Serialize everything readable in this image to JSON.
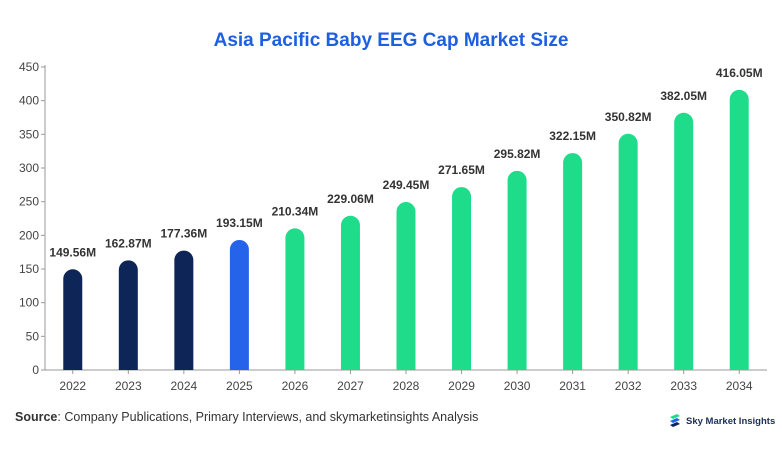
{
  "chart_data": {
    "type": "bar",
    "title": "Asia Pacific Baby EEG Cap Market Size",
    "xlabel": "",
    "ylabel": "",
    "ylim": [
      0,
      450
    ],
    "yticks": [
      0,
      50,
      100,
      150,
      200,
      250,
      300,
      350,
      400,
      450
    ],
    "categories": [
      "2022",
      "2023",
      "2024",
      "2025",
      "2026",
      "2027",
      "2028",
      "2029",
      "2030",
      "2031",
      "2032",
      "2033",
      "2034"
    ],
    "values": [
      149.56,
      162.87,
      177.36,
      193.15,
      210.34,
      229.06,
      249.45,
      271.65,
      295.82,
      322.15,
      350.82,
      382.05,
      416.05
    ],
    "labels": [
      "149.56M",
      "162.87M",
      "177.36M",
      "193.15M",
      "210.34M",
      "229.06M",
      "249.45M",
      "271.65M",
      "295.82M",
      "322.15M",
      "350.82M",
      "382.05M",
      "416.05M"
    ],
    "bar_colors": [
      "#0d2557",
      "#0d2557",
      "#0d2557",
      "#2563eb",
      "#1fdc8a",
      "#1fdc8a",
      "#1fdc8a",
      "#1fdc8a",
      "#1fdc8a",
      "#1fdc8a",
      "#1fdc8a",
      "#1fdc8a",
      "#1fdc8a"
    ],
    "grid": false
  },
  "source": {
    "label": "Source",
    "text": ": Company Publications, Primary Interviews, and skymarketinsights Analysis"
  },
  "brand": {
    "name": "Sky Market Insights",
    "logo_icon": "sky-market-insights-logo-icon"
  }
}
